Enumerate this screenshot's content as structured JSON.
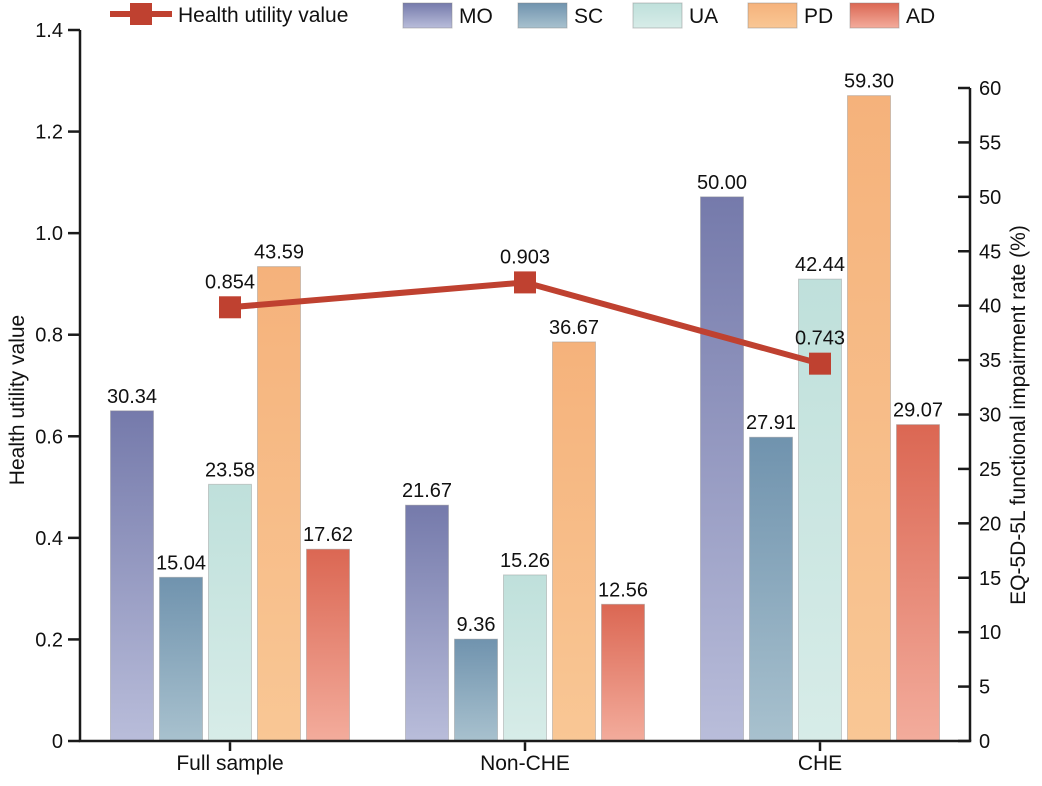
{
  "chart_data": {
    "type": "bar",
    "subtype": "grouped-bars-with-line-overlay",
    "categories": [
      "Full sample",
      "Non-CHE",
      "CHE"
    ],
    "series": [
      {
        "name": "MO",
        "values": [
          30.34,
          21.67,
          50.0
        ],
        "labels": [
          "30.34",
          "21.67",
          "50.00"
        ],
        "color_top": "#757aab",
        "color_bottom": "#b9bdda"
      },
      {
        "name": "SC",
        "values": [
          15.04,
          9.36,
          27.91
        ],
        "labels": [
          "15.04",
          "9.36",
          "27.91"
        ],
        "color_top": "#7093ae",
        "color_bottom": "#a8c1ce"
      },
      {
        "name": "UA",
        "values": [
          23.58,
          15.26,
          42.44
        ],
        "labels": [
          "23.58",
          "15.26",
          "42.44"
        ],
        "color_top": "#bfe0db",
        "color_bottom": "#d7ece8"
      },
      {
        "name": "PD",
        "values": [
          43.59,
          36.67,
          59.3
        ],
        "labels": [
          "43.59",
          "36.67",
          "59.30"
        ],
        "color_top": "#f5b27b",
        "color_bottom": "#f9c795"
      },
      {
        "name": "AD",
        "values": [
          17.62,
          12.56,
          29.07
        ],
        "labels": [
          "17.62",
          "12.56",
          "29.07"
        ],
        "color_top": "#db6753",
        "color_bottom": "#f3ac9c"
      }
    ],
    "line_series": {
      "name": "Health utility value",
      "axis": "left",
      "values": [
        0.854,
        0.903,
        0.743
      ],
      "labels": [
        "0.854",
        "0.903",
        "0.743"
      ],
      "color": "#bf4130"
    },
    "left_axis": {
      "label": "Health utility value",
      "min": 0,
      "max": 1.4,
      "tick_values": [
        0,
        0.2,
        0.4,
        0.6,
        0.8,
        1.0,
        1.2,
        1.4
      ],
      "tick_labels": [
        "0",
        "0.2",
        "0.4",
        "0.6",
        "0.8",
        "1.0",
        "1.2",
        "1.4"
      ]
    },
    "right_axis": {
      "label": "EQ-5D-5L functional impairment rate (%)",
      "min": 0,
      "max": 60,
      "tick_values": [
        0,
        5,
        10,
        15,
        20,
        25,
        30,
        35,
        40,
        45,
        50,
        55,
        60
      ],
      "tick_labels": [
        "0",
        "5",
        "10",
        "15",
        "20",
        "25",
        "30",
        "35",
        "40",
        "45",
        "50",
        "55",
        "60"
      ]
    },
    "legend": {
      "line_item": "Health utility value",
      "bar_items": [
        "MO",
        "SC",
        "UA",
        "PD",
        "AD"
      ],
      "position": "top"
    },
    "grid": false,
    "background": "#ffffff",
    "text_color": "#111111",
    "axis_color": "#1a1a1a"
  }
}
